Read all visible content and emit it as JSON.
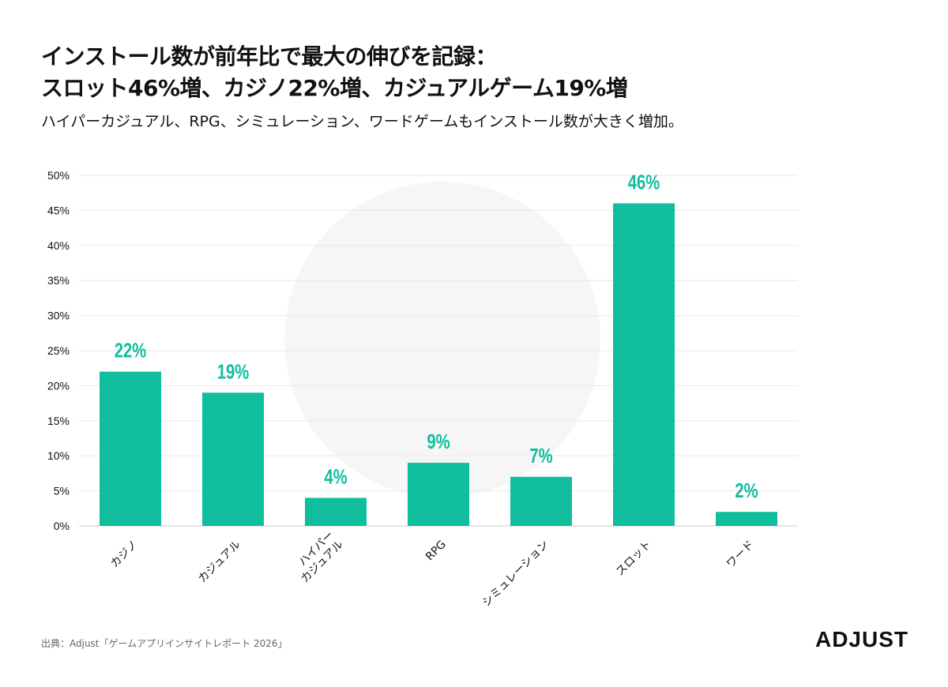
{
  "header": {
    "title_line1": "インストール数が前年比で最大の伸びを記録：",
    "title_line2": "スロット46%増、カジノ22%増、カジュアルゲーム19%増",
    "subtitle": "ハイパーカジュアル、RPG、シミュレーション、ワードゲームもインストール数が大きく増加。"
  },
  "footer": {
    "source": "出典：Adjust「ゲームアプリインサイトレポート 2026」",
    "brand": "ADJUST"
  },
  "colors": {
    "bar": "#10BE9E",
    "label": "#10BE9E",
    "grid": "#e9e9ee",
    "axis": "#cccccc",
    "text": "#111111"
  },
  "chart_data": {
    "type": "bar",
    "categories": [
      "カジノ",
      "カジュアル",
      "ハイパーカジュアル",
      "RPG",
      "シミュレーション",
      "スロット",
      "ワード"
    ],
    "category_label_lines": [
      [
        "カジノ"
      ],
      [
        "カジュアル"
      ],
      [
        "ハイパー",
        "カジュアル"
      ],
      [
        "RPG"
      ],
      [
        "シミュレーション"
      ],
      [
        "スロット"
      ],
      [
        "ワード"
      ]
    ],
    "values": [
      22,
      19,
      4,
      9,
      7,
      46,
      2
    ],
    "data_labels": [
      "22%",
      "19%",
      "4%",
      "9%",
      "7%",
      "46%",
      "2%"
    ],
    "yticks": [
      "0%",
      "5%",
      "10%",
      "15%",
      "20%",
      "25%",
      "30%",
      "35%",
      "40%",
      "45%",
      "50%"
    ],
    "ylim": [
      0,
      50
    ],
    "grid": true,
    "title": "",
    "xlabel": "",
    "ylabel": ""
  }
}
